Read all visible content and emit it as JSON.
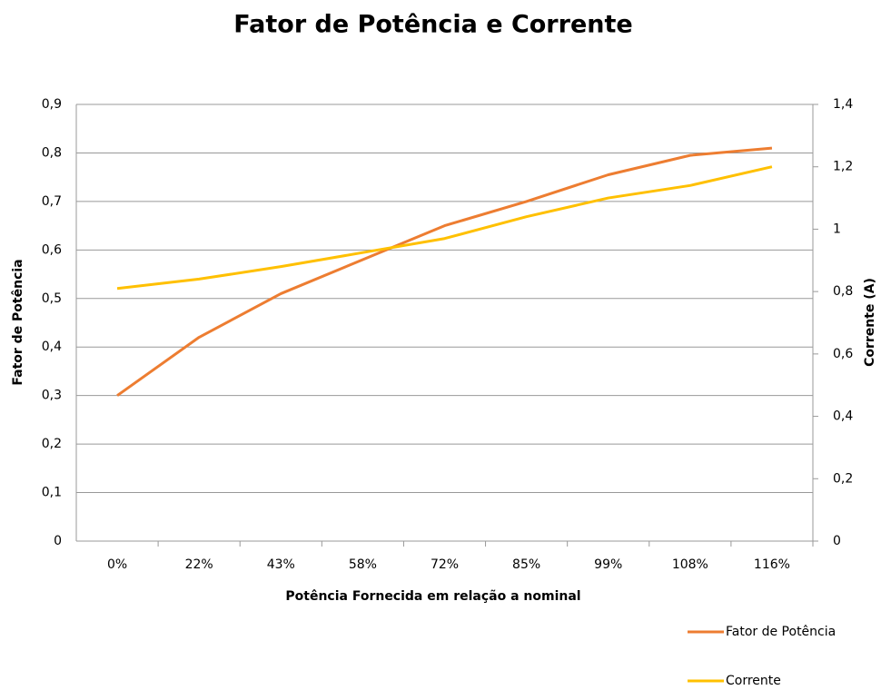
{
  "chart_data": {
    "type": "line",
    "title": "Fator de Potência e Corrente",
    "x_label": "Potência Fornecida em relação a nominal",
    "y_label": "Fator de Potência",
    "y2_label": "Corrente (A)",
    "categories": [
      "0%",
      "22%",
      "43%",
      "58%",
      "72%",
      "85%",
      "99%",
      "108%",
      "116%"
    ],
    "series": [
      {
        "name": "Fator de Potência",
        "color": "#ed7d31",
        "values": [
          0.3,
          0.42,
          0.51,
          0.58,
          0.65,
          0.7,
          0.755,
          0.795,
          0.81
        ]
      },
      {
        "name": "Corrente",
        "color": "#ffc000",
        "axis": "y2",
        "values": [
          0.81,
          0.84,
          0.88,
          0.925,
          0.97,
          1.04,
          1.1,
          1.14,
          1.2
        ]
      }
    ],
    "ylim": [
      0,
      0.9
    ],
    "yticks": [
      0,
      {
        "value": 0.1,
        "label": "0,1"
      },
      {
        "value": 0.2,
        "label": "0,2"
      },
      {
        "value": 0.3,
        "label": "0,3"
      },
      {
        "value": 0.4,
        "label": "0,4"
      },
      {
        "value": 0.5,
        "label": "0,5"
      },
      {
        "value": 0.6,
        "label": "0,6"
      },
      {
        "value": 0.7,
        "label": "0,7"
      },
      {
        "value": 0.8,
        "label": "0,8"
      },
      {
        "value": 0.9,
        "label": "0,9"
      }
    ],
    "y2lim": [
      0,
      1.4
    ],
    "y2ticks": [
      0,
      {
        "value": 0.2,
        "label": "0,2"
      },
      {
        "value": 0.4,
        "label": "0,4"
      },
      {
        "value": 0.6,
        "label": "0,6"
      },
      {
        "value": 0.8,
        "label": "0,8"
      },
      1,
      {
        "value": 1.2,
        "label": "1,2"
      },
      {
        "value": 1.4,
        "label": "1,4"
      }
    ],
    "grid": true,
    "legend": "bottom-right"
  }
}
